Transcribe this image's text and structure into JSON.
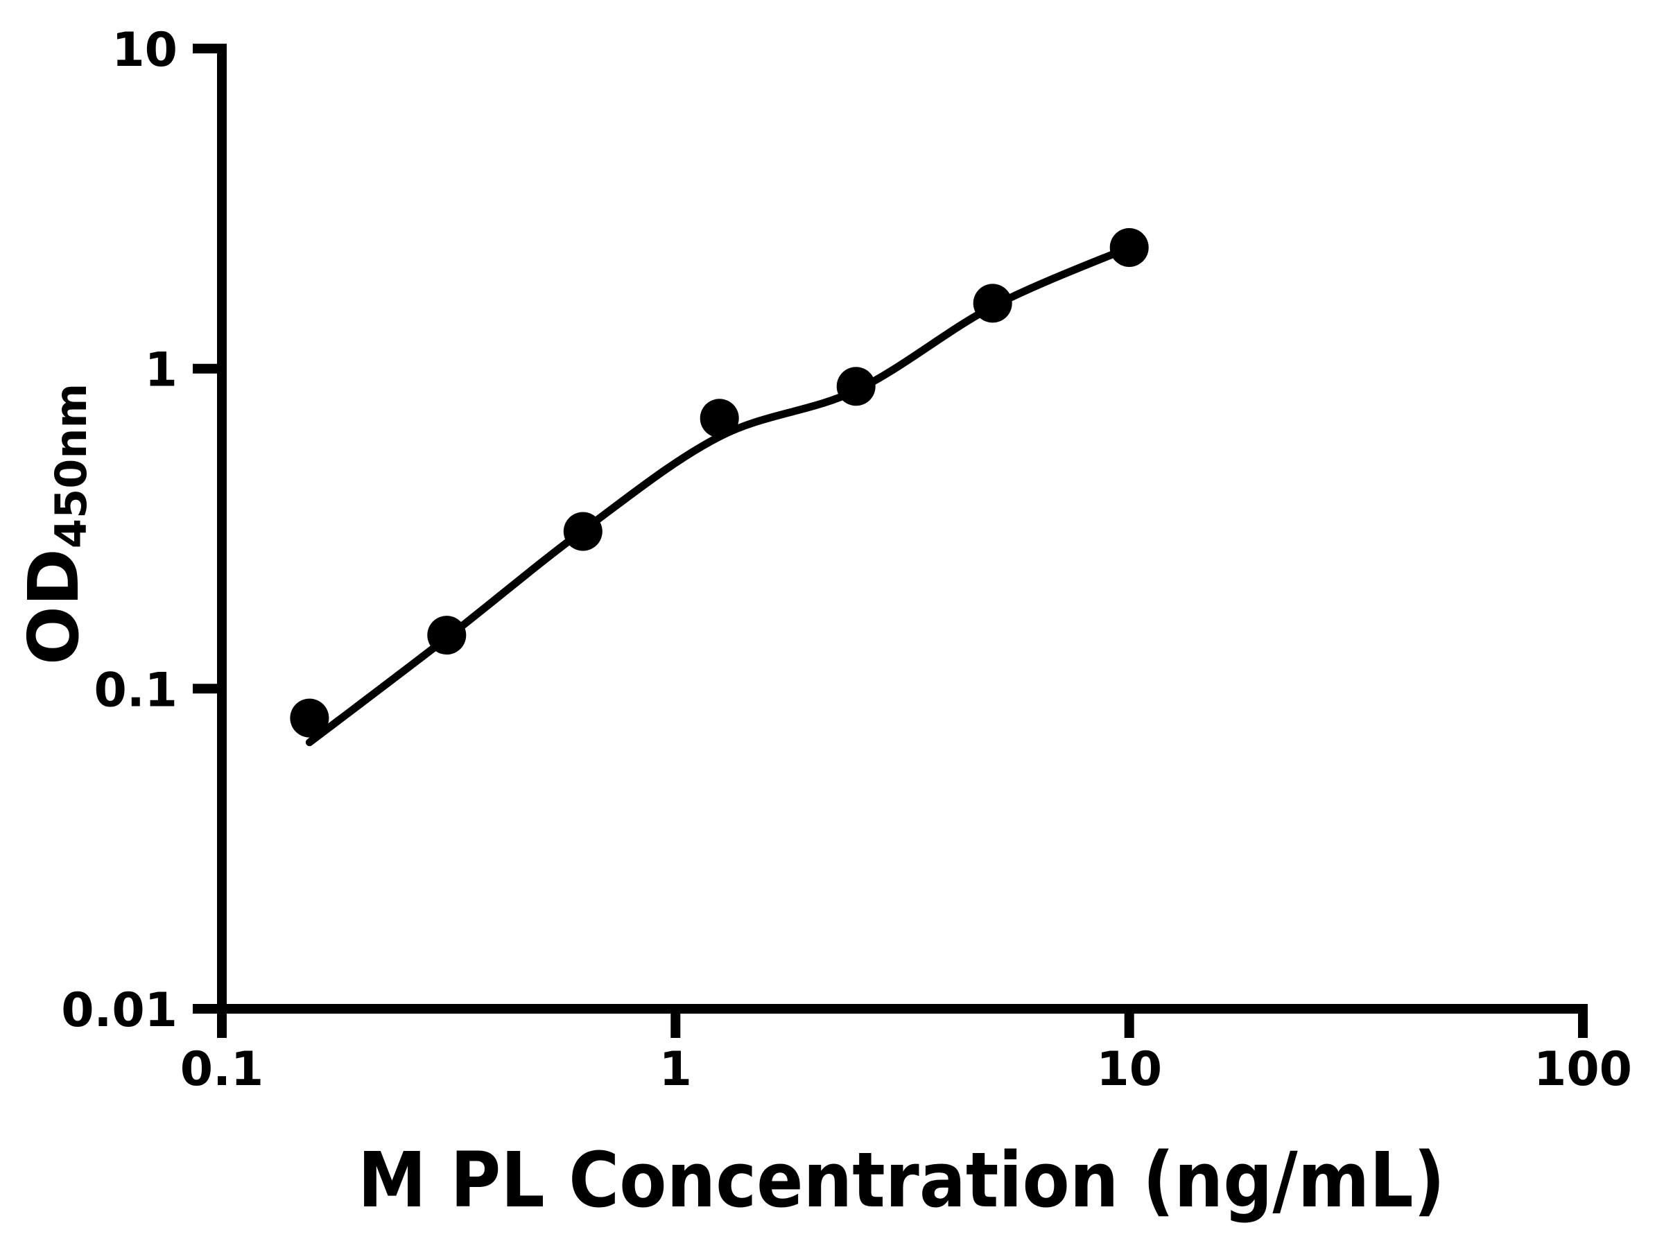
{
  "figure": {
    "background_color": "#ffffff",
    "ink_color": "#000000"
  },
  "chart_data": {
    "type": "scatter",
    "title": "",
    "xlabel": "M PL Concentration (ng/mL)",
    "ylabel": "OD450nm",
    "ylabel_main": "OD",
    "ylabel_sub": "450nm",
    "x_scale": "log",
    "y_scale": "log",
    "xlim": [
      0.1,
      100
    ],
    "ylim": [
      0.01,
      10
    ],
    "x_ticks": [
      {
        "value": 0.1,
        "label": "0.1"
      },
      {
        "value": 1,
        "label": "1"
      },
      {
        "value": 10,
        "label": "10"
      },
      {
        "value": 100,
        "label": "100"
      }
    ],
    "y_ticks": [
      {
        "value": 0.01,
        "label": "0.01"
      },
      {
        "value": 0.1,
        "label": "0.1"
      },
      {
        "value": 1,
        "label": "1"
      },
      {
        "value": 10,
        "label": "10"
      }
    ],
    "grid": false,
    "legend": false,
    "marker": {
      "shape": "circle",
      "color": "#000000"
    },
    "series": [
      {
        "name": "standard-curve-points",
        "points": [
          {
            "x": 0.156,
            "y": 0.081
          },
          {
            "x": 0.313,
            "y": 0.147
          },
          {
            "x": 0.625,
            "y": 0.31
          },
          {
            "x": 1.25,
            "y": 0.7
          },
          {
            "x": 2.5,
            "y": 0.88
          },
          {
            "x": 5,
            "y": 1.6
          },
          {
            "x": 10,
            "y": 2.39
          }
        ]
      }
    ],
    "fit_curve": [
      {
        "x": 0.156,
        "y": 0.068
      },
      {
        "x": 0.313,
        "y": 0.144
      },
      {
        "x": 0.625,
        "y": 0.312
      },
      {
        "x": 1.25,
        "y": 0.613
      },
      {
        "x": 2.5,
        "y": 0.855
      },
      {
        "x": 5,
        "y": 1.563
      },
      {
        "x": 10,
        "y": 2.39
      }
    ]
  }
}
